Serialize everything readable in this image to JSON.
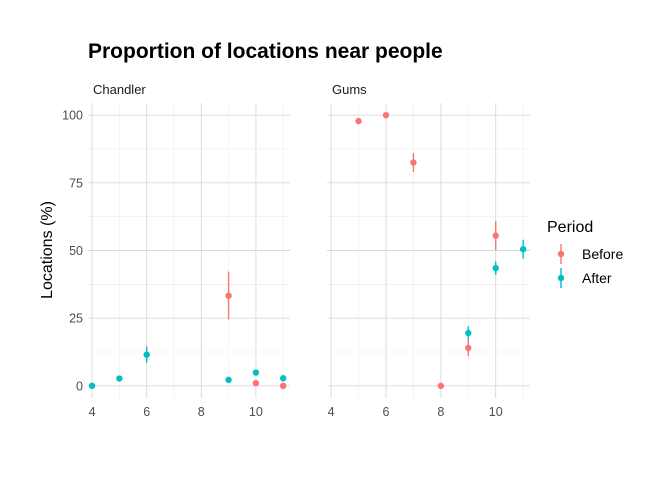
{
  "chart_data": {
    "type": "scatter",
    "title": "Proportion of locations near people",
    "xlabel": "",
    "ylabel": "Locations (%)",
    "xlim": [
      3.85,
      11.25
    ],
    "ylim": [
      -4.5,
      104.5
    ],
    "x_ticks": [
      4,
      6,
      8,
      10
    ],
    "y_ticks": [
      0,
      25,
      50,
      75,
      100
    ],
    "x_tick_labels": [
      "4",
      "6",
      "8",
      "10"
    ],
    "y_tick_labels": [
      "0",
      "25",
      "50",
      "75",
      "100"
    ],
    "grid": true,
    "legend": {
      "title": "Period",
      "position": "right",
      "entries": [
        "Before",
        "After"
      ]
    },
    "colors": {
      "Before": "#F8766D",
      "After": "#00BFC4"
    },
    "panels": [
      {
        "name": "Chandler",
        "series": [
          {
            "name": "Before",
            "points": [
              {
                "x": 9,
                "y": 33.3,
                "lo": 24.5,
                "hi": 42.2
              },
              {
                "x": 10,
                "y": 1.0,
                "lo": 0.2,
                "hi": 1.8
              },
              {
                "x": 11,
                "y": 0.0,
                "lo": 0.0,
                "hi": 0.0
              }
            ]
          },
          {
            "name": "After",
            "points": [
              {
                "x": 4,
                "y": 0.0,
                "lo": 0.0,
                "hi": 0.0
              },
              {
                "x": 5,
                "y": 2.7,
                "lo": 2.0,
                "hi": 3.4
              },
              {
                "x": 6,
                "y": 11.5,
                "lo": 8.5,
                "hi": 14.5
              },
              {
                "x": 9,
                "y": 2.2,
                "lo": 1.4,
                "hi": 3.0
              },
              {
                "x": 10,
                "y": 4.9,
                "lo": 4.1,
                "hi": 5.7
              },
              {
                "x": 11,
                "y": 2.8,
                "lo": 2.0,
                "hi": 3.6
              }
            ]
          }
        ]
      },
      {
        "name": "Gums",
        "series": [
          {
            "name": "Before",
            "points": [
              {
                "x": 5,
                "y": 97.8,
                "lo": 96.8,
                "hi": 98.8
              },
              {
                "x": 6,
                "y": 100.0,
                "lo": 100.0,
                "hi": 100.0
              },
              {
                "x": 7,
                "y": 82.5,
                "lo": 79.0,
                "hi": 86.0
              },
              {
                "x": 8,
                "y": 0.0,
                "lo": 0.0,
                "hi": 0.0
              },
              {
                "x": 9,
                "y": 14.0,
                "lo": 11.0,
                "hi": 17.0
              },
              {
                "x": 10,
                "y": 55.5,
                "lo": 50.2,
                "hi": 60.8
              }
            ]
          },
          {
            "name": "After",
            "points": [
              {
                "x": 9,
                "y": 19.5,
                "lo": 17.0,
                "hi": 22.0
              },
              {
                "x": 10,
                "y": 43.5,
                "lo": 41.0,
                "hi": 46.0
              },
              {
                "x": 11,
                "y": 50.5,
                "lo": 47.0,
                "hi": 54.0
              }
            ]
          }
        ]
      }
    ]
  }
}
